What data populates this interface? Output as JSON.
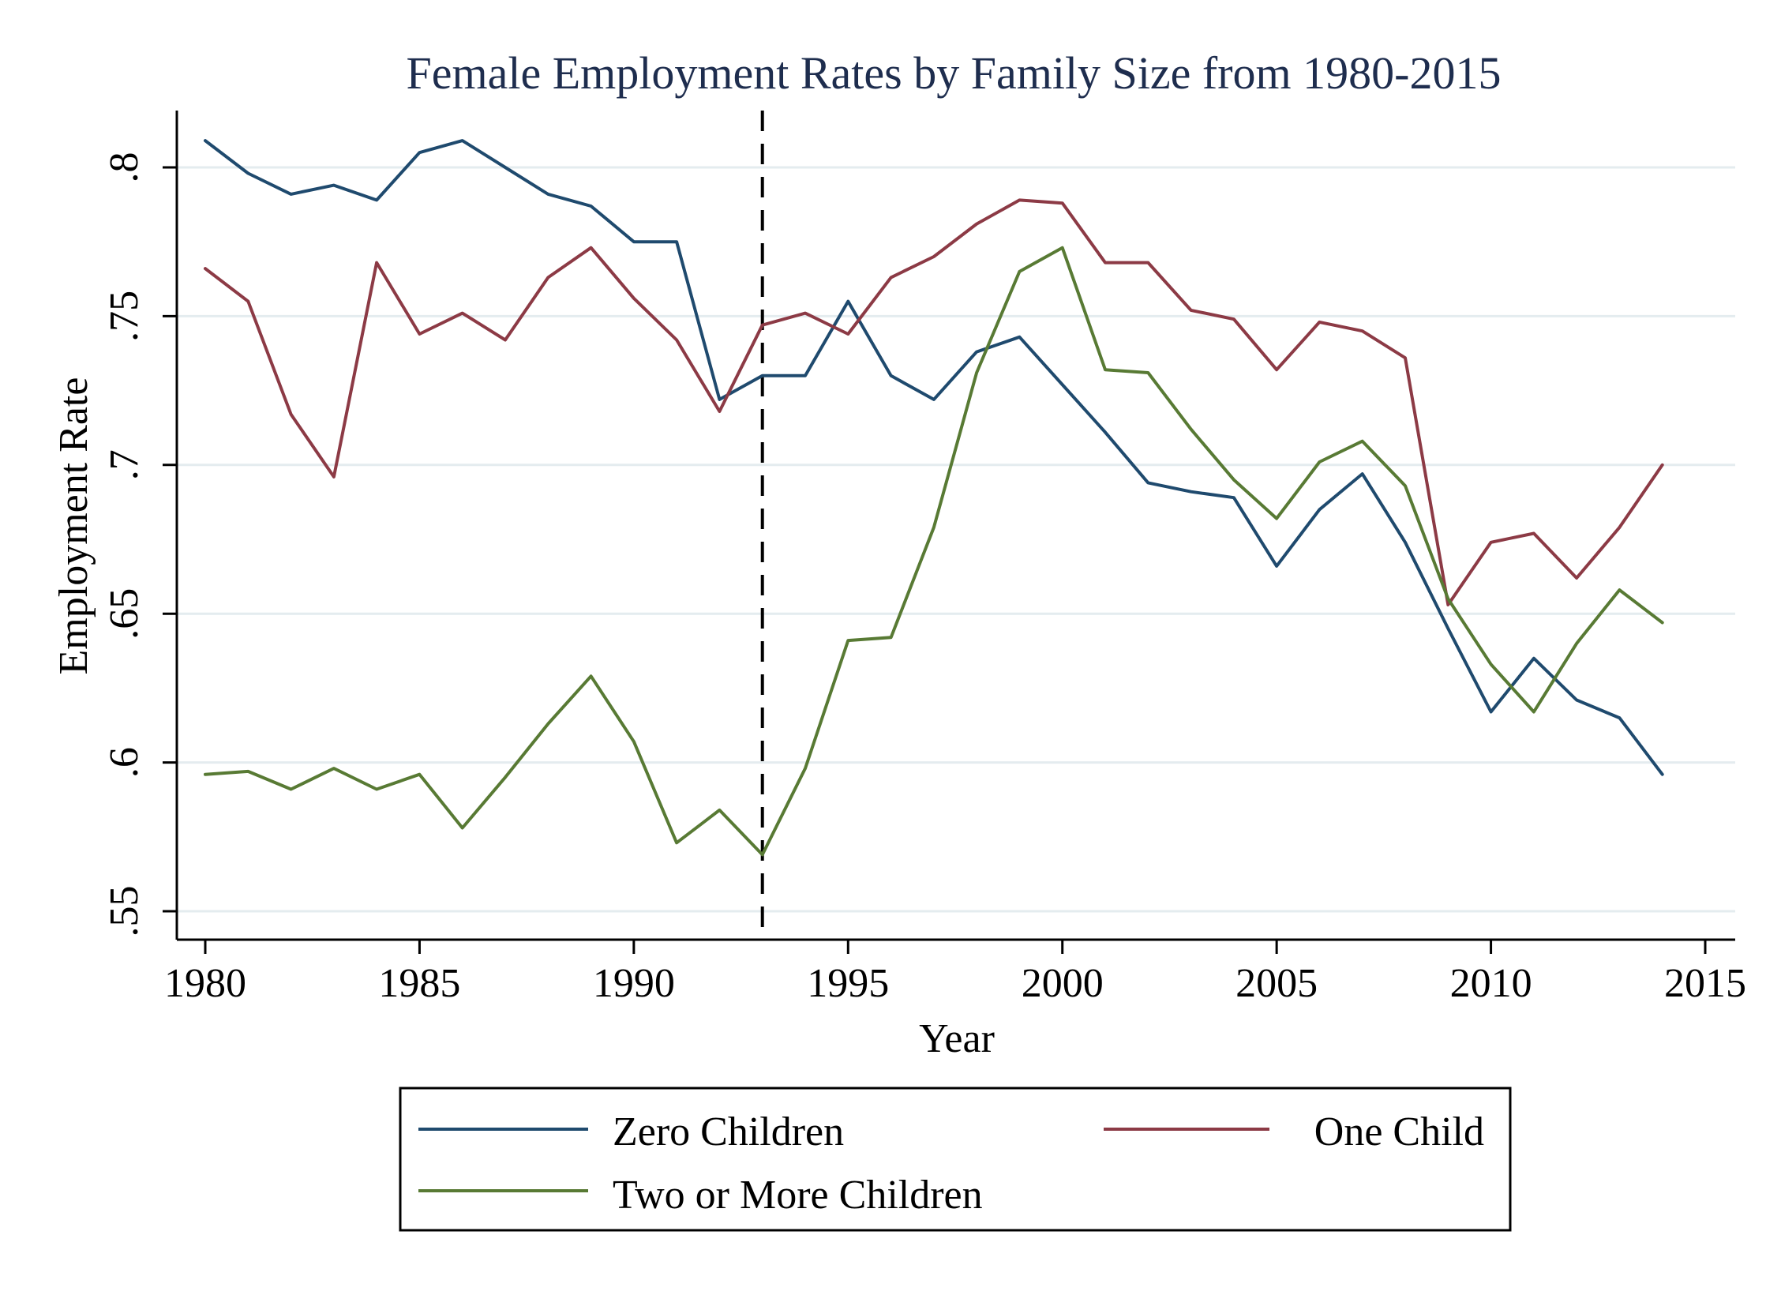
{
  "chart_data": {
    "type": "line",
    "title": "Female Employment Rates by Family Size from 1980-2015",
    "xlabel": "Year",
    "ylabel": "Employment Rate",
    "xlim": [
      1980,
      2015
    ],
    "ylim": [
      0.55,
      0.8
    ],
    "x_ticks": [
      1980,
      1985,
      1990,
      1995,
      2000,
      2005,
      2010,
      2015
    ],
    "x_tick_labels": [
      "1980",
      "1985",
      "1990",
      "1995",
      "2000",
      "2005",
      "2010",
      "2015"
    ],
    "y_ticks": [
      0.55,
      0.6,
      0.65,
      0.7,
      0.75,
      0.8
    ],
    "y_tick_labels": [
      ".55",
      ".6",
      ".65",
      ".7",
      ".75",
      ".8"
    ],
    "grid": "horizontal",
    "legend_position": "bottom",
    "reference_line": {
      "x": 1993,
      "style": "dashed",
      "color": "#000000"
    },
    "x": [
      1980,
      1981,
      1982,
      1983,
      1984,
      1985,
      1986,
      1987,
      1988,
      1989,
      1990,
      1991,
      1992,
      1993,
      1994,
      1995,
      1996,
      1997,
      1998,
      1999,
      2000,
      2001,
      2002,
      2003,
      2004,
      2005,
      2006,
      2007,
      2008,
      2009,
      2010,
      2011,
      2012,
      2013,
      2014
    ],
    "series": [
      {
        "name": "Zero Children",
        "color": "#1f4a6e",
        "values": [
          0.809,
          0.798,
          0.791,
          0.794,
          0.789,
          0.805,
          0.809,
          0.8,
          0.791,
          0.787,
          0.775,
          0.775,
          0.722,
          0.73,
          0.73,
          0.755,
          0.73,
          0.722,
          0.738,
          0.743,
          0.727,
          0.711,
          0.694,
          0.691,
          0.689,
          0.666,
          0.685,
          0.697,
          0.674,
          0.645,
          0.617,
          0.635,
          0.621,
          0.615,
          0.596
        ]
      },
      {
        "name": "One Child",
        "color": "#8c3a45",
        "values": [
          0.766,
          0.755,
          0.717,
          0.696,
          0.768,
          0.744,
          0.751,
          0.742,
          0.763,
          0.773,
          0.756,
          0.742,
          0.718,
          0.747,
          0.751,
          0.744,
          0.763,
          0.77,
          0.781,
          0.789,
          0.788,
          0.768,
          0.768,
          0.752,
          0.749,
          0.732,
          0.748,
          0.745,
          0.736,
          0.653,
          0.674,
          0.677,
          0.662,
          0.679,
          0.7
        ]
      },
      {
        "name": "Two or More Children",
        "color": "#587a34",
        "values": [
          0.596,
          0.597,
          0.591,
          0.598,
          0.591,
          0.596,
          0.578,
          0.595,
          0.613,
          0.629,
          0.607,
          0.573,
          0.584,
          0.569,
          0.598,
          0.641,
          0.642,
          0.679,
          0.731,
          0.765,
          0.773,
          0.732,
          0.731,
          0.712,
          0.695,
          0.682,
          0.701,
          0.708,
          0.693,
          0.655,
          0.633,
          0.617,
          0.64,
          0.658,
          0.647
        ]
      }
    ]
  }
}
